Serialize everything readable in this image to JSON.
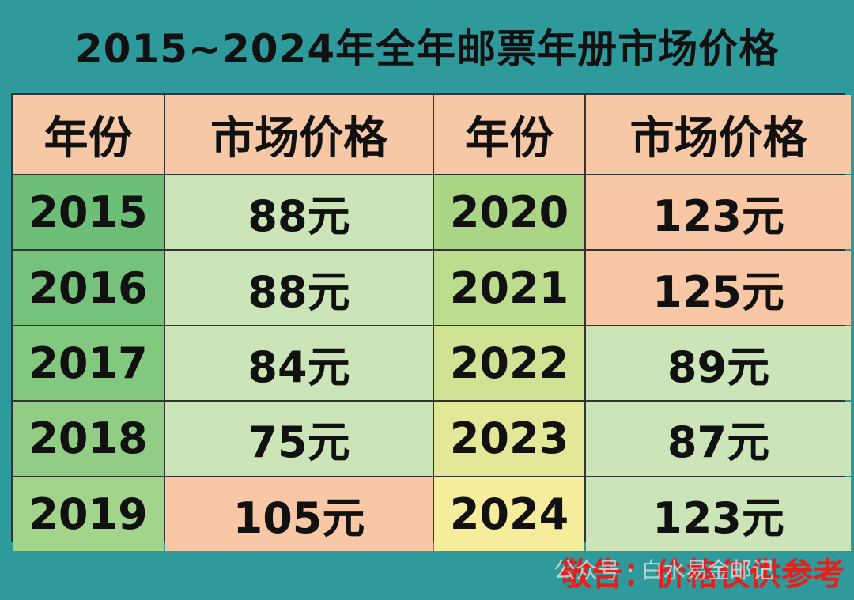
{
  "title": "2015~2024年全年邮票年册市场价格",
  "table": {
    "header": [
      "年份",
      "市场价格",
      "年份",
      "市场价格"
    ],
    "rows": [
      [
        "2015",
        "88元",
        "2020",
        "123元"
      ],
      [
        "2016",
        "88元",
        "2021",
        "125元"
      ],
      [
        "2017",
        "84元",
        "2022",
        "89元"
      ],
      [
        "2018",
        "75元",
        "2023",
        "87元"
      ],
      [
        "2019",
        "105元",
        "2024",
        "123元"
      ]
    ]
  },
  "footer": {
    "notice": "敬告：价格仅供参考",
    "watermark": "公众号 · 白水易金邮记"
  }
}
